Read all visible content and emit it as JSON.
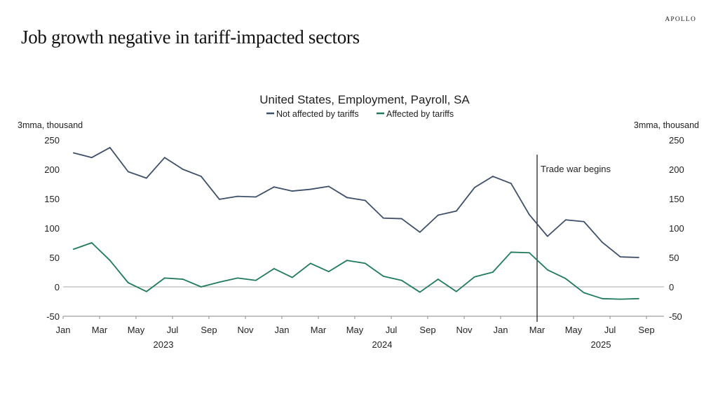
{
  "page": {
    "title": "Job growth negative in tariff-impacted sectors",
    "logo": "APOLLO"
  },
  "chart_data": {
    "type": "line",
    "title": "United States, Employment, Payroll, SA",
    "ylabel_left": "3mma, thousand",
    "ylabel_right": "3mma, thousand",
    "ylim": [
      -50,
      250
    ],
    "yticks": [
      -50,
      0,
      50,
      100,
      150,
      200,
      250
    ],
    "xticks": [
      "Jan",
      "Mar",
      "May",
      "Jul",
      "Sep",
      "Nov",
      "Jan",
      "Mar",
      "May",
      "Jul",
      "Sep",
      "Nov",
      "Jan",
      "Mar",
      "May",
      "Jul",
      "Sep"
    ],
    "years": [
      "2023",
      "2024",
      "2025"
    ],
    "x": [
      "2023-01",
      "2023-02",
      "2023-03",
      "2023-04",
      "2023-05",
      "2023-06",
      "2023-07",
      "2023-08",
      "2023-09",
      "2023-10",
      "2023-11",
      "2023-12",
      "2024-01",
      "2024-02",
      "2024-03",
      "2024-04",
      "2024-05",
      "2024-06",
      "2024-07",
      "2024-08",
      "2024-09",
      "2024-10",
      "2024-11",
      "2024-12",
      "2025-01",
      "2025-02",
      "2025-03",
      "2025-04",
      "2025-05",
      "2025-06",
      "2025-07",
      "2025-08"
    ],
    "series": [
      {
        "name": "Not affected by tariffs",
        "color": "#3e4f6a",
        "values": [
          228,
          220,
          237,
          196,
          185,
          220,
          200,
          188,
          149,
          154,
          153,
          170,
          163,
          166,
          171,
          152,
          147,
          117,
          116,
          93,
          122,
          129,
          169,
          188,
          176,
          123,
          86,
          114,
          111,
          76,
          51,
          50
        ]
      },
      {
        "name": "Affected by tariffs",
        "color": "#1f7a5e",
        "values": [
          64,
          75,
          45,
          7,
          -8,
          15,
          13,
          0,
          8,
          15,
          11,
          31,
          16,
          40,
          26,
          45,
          40,
          18,
          11,
          -9,
          13,
          -8,
          17,
          25,
          59,
          58,
          29,
          14,
          -10,
          -20,
          -21,
          -20
        ]
      }
    ],
    "annotation": {
      "label": "Trade war begins",
      "x": "2025-03"
    },
    "legend": "top-center",
    "grid": false
  }
}
